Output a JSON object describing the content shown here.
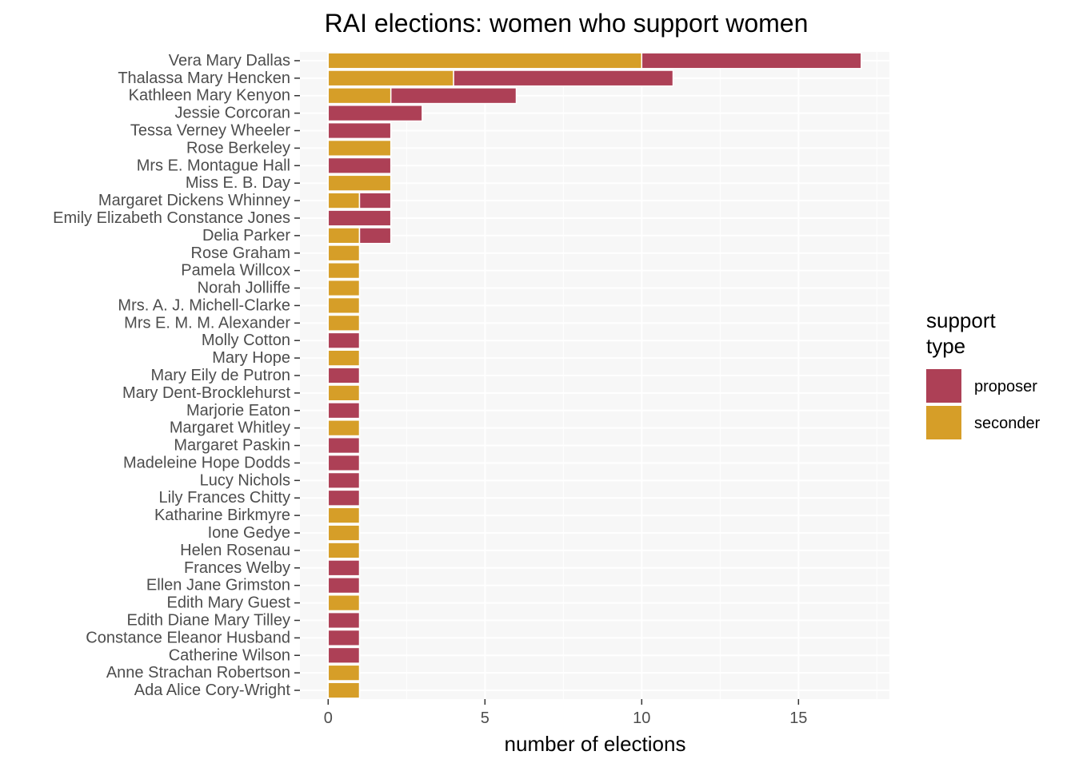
{
  "chart_data": {
    "type": "bar",
    "orientation": "horizontal",
    "stacked": true,
    "title": "RAI elections: women who support women",
    "xlabel": "number of elections",
    "ylabel": "",
    "xlim": [
      -0.9,
      17.9
    ],
    "xticks": [
      0,
      5,
      10,
      15
    ],
    "grid": true,
    "legend": {
      "title": "support\ntype",
      "position": "right",
      "entries": [
        {
          "label": "proposer",
          "color": "#AD4056"
        },
        {
          "label": "seconder",
          "color": "#D69E28"
        }
      ]
    },
    "categories": [
      "Vera Mary Dallas",
      "Thalassa Mary Hencken",
      "Kathleen Mary Kenyon",
      "Jessie Corcoran",
      "Tessa Verney Wheeler",
      "Rose Berkeley",
      "Mrs E. Montague Hall",
      "Miss E. B. Day",
      "Margaret Dickens Whinney",
      "Emily Elizabeth Constance Jones",
      "Delia Parker",
      "Rose Graham",
      "Pamela Willcox",
      "Norah Jolliffe",
      "Mrs. A. J. Michell-Clarke",
      "Mrs E. M. M. Alexander",
      "Molly Cotton",
      "Mary Hope",
      "Mary Eily de Putron",
      "Mary Dent-Brocklehurst",
      "Marjorie Eaton",
      "Margaret Whitley",
      "Margaret Paskin",
      "Madeleine Hope Dodds",
      "Lucy Nichols",
      "Lily Frances Chitty",
      "Katharine Birkmyre",
      "Ione Gedye",
      "Helen Rosenau",
      "Frances Welby",
      "Ellen Jane Grimston",
      "Edith Mary Guest",
      "Edith Diane Mary Tilley",
      "Constance Eleanor Husband",
      "Catherine Wilson",
      "Anne Strachan Robertson",
      "Ada Alice Cory-Wright"
    ],
    "series": [
      {
        "name": "seconder",
        "color": "#D69E28",
        "values": [
          10,
          4,
          2,
          0,
          0,
          2,
          0,
          2,
          1,
          0,
          1,
          1,
          1,
          1,
          1,
          1,
          0,
          1,
          0,
          1,
          0,
          1,
          0,
          0,
          0,
          0,
          1,
          1,
          1,
          0,
          0,
          1,
          0,
          0,
          0,
          1,
          1
        ]
      },
      {
        "name": "proposer",
        "color": "#AD4056",
        "values": [
          7,
          7,
          4,
          3,
          2,
          0,
          2,
          0,
          1,
          2,
          1,
          0,
          0,
          0,
          0,
          0,
          1,
          0,
          1,
          0,
          1,
          0,
          1,
          1,
          1,
          1,
          0,
          0,
          0,
          1,
          1,
          0,
          1,
          1,
          1,
          0,
          0
        ]
      }
    ]
  }
}
